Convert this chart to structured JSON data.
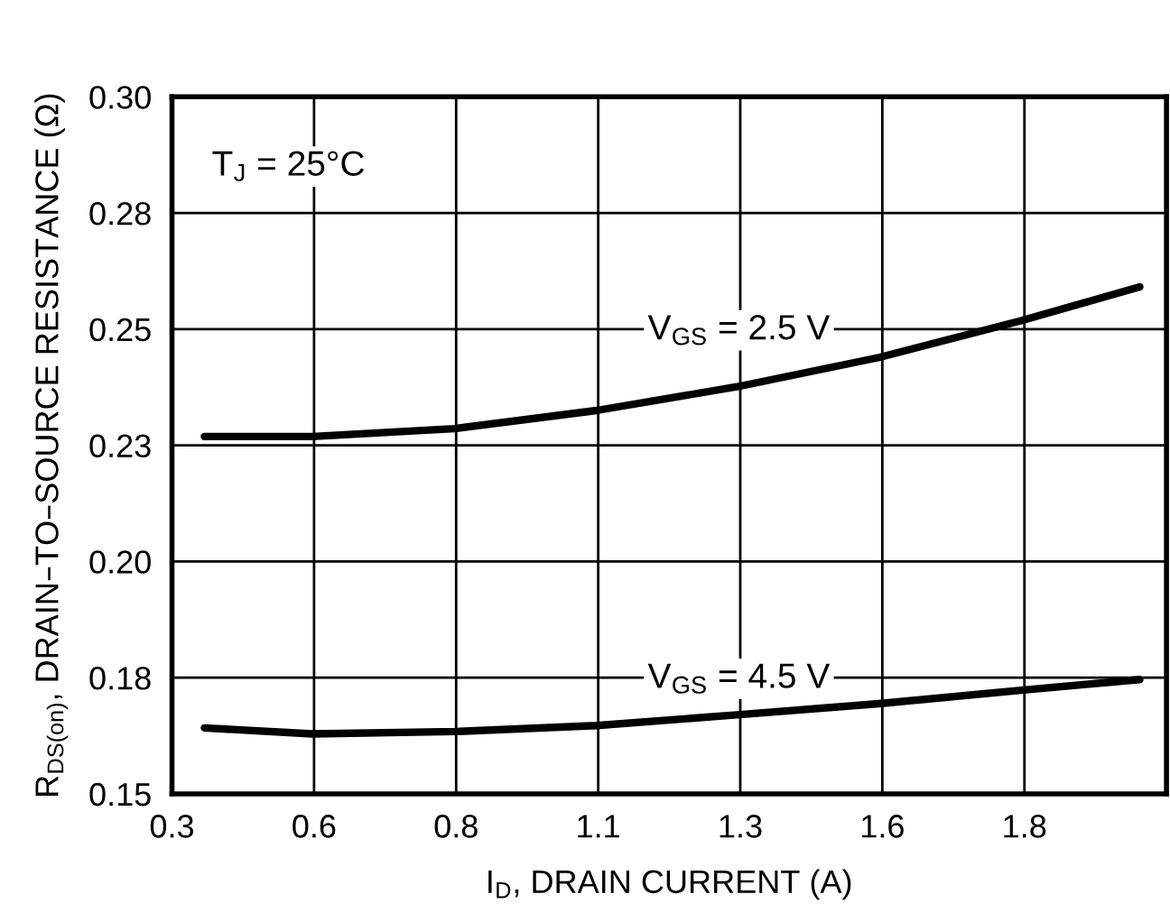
{
  "chart_data": {
    "type": "line",
    "xlabel": "I$_{D}$, DRAIN CURRENT (A)",
    "ylabel": "R$_{DS(on)}$, DRAIN–TO–SOURCE RESISTANCE (Ω)",
    "xlim": [
      0.3,
      2.05
    ],
    "xticks": [
      {
        "value": 0.3,
        "label": "0.3"
      },
      {
        "value": 0.55,
        "label": "0.6"
      },
      {
        "value": 0.8,
        "label": "0.8"
      },
      {
        "value": 1.05,
        "label": "1.1"
      },
      {
        "value": 1.3,
        "label": "1.3"
      },
      {
        "value": 1.55,
        "label": "1.6"
      },
      {
        "value": 1.8,
        "label": "1.8"
      }
    ],
    "ylim": [
      0.15,
      0.3
    ],
    "yticks": [
      {
        "value": 0.15,
        "label": "0.15"
      },
      {
        "value": 0.175,
        "label": "0.18"
      },
      {
        "value": 0.2,
        "label": "0.20"
      },
      {
        "value": 0.225,
        "label": "0.23"
      },
      {
        "value": 0.25,
        "label": "0.25"
      },
      {
        "value": 0.275,
        "label": "0.28"
      },
      {
        "value": 0.3,
        "label": "0.30"
      }
    ],
    "grid": true,
    "series": [
      {
        "color": "#000000",
        "x": [
          0.357,
          0.547,
          0.797,
          1.047,
          1.294,
          1.544,
          1.714,
          1.794,
          2.003
        ],
        "values": [
          0.2269,
          0.2269,
          0.2286,
          0.2325,
          0.2376,
          0.2439,
          0.2493,
          0.2518,
          0.2591
        ]
      },
      {
        "color": "#000000",
        "x": [
          0.357,
          0.547,
          0.797,
          1.047,
          1.294,
          1.544,
          1.794,
          2.003
        ],
        "values": [
          0.1642,
          0.1629,
          0.1634,
          0.1647,
          0.167,
          0.1694,
          0.1723,
          0.1746
        ]
      }
    ],
    "annotations": [
      "T$_{J}$ = 25°C",
      "V$_{GS}$ = 2.5 V",
      "V$_{GS}$ = 4.5 V"
    ]
  }
}
